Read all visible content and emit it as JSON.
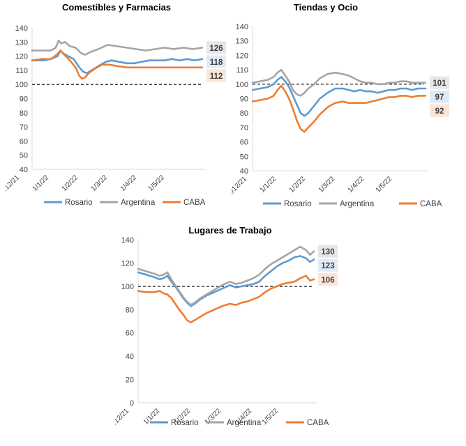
{
  "chart_data": [
    {
      "type": "line",
      "title": "Comestibles y Farmacias",
      "xlabel": "",
      "ylabel": "",
      "ylim": [
        40,
        140
      ],
      "yticks": [
        "40",
        "50",
        "60",
        "70",
        "80",
        "90",
        "100",
        "110",
        "120",
        "130",
        "140"
      ],
      "x_ticks": [
        "1/12/21",
        "1/1/22",
        "1/2/22",
        "1/3/22",
        "1/4/22",
        "1/5/22"
      ],
      "reference_line": 100,
      "legend_position": "bottom",
      "series": [
        {
          "name": "Rosario",
          "color": "#5B9BD5",
          "end_label": "118",
          "x": [
            0,
            12,
            20,
            27,
            30,
            33,
            38,
            44,
            50,
            54,
            58,
            63,
            70,
            78,
            84,
            92,
            100,
            108,
            116,
            124,
            132,
            140,
            148,
            156,
            164,
            172,
            180
          ],
          "values": [
            117,
            117,
            118,
            120,
            124,
            122,
            120,
            118,
            112,
            109,
            108,
            110,
            113,
            116,
            117,
            116,
            115,
            115,
            116,
            117,
            117,
            117,
            118,
            117,
            118,
            117,
            118
          ]
        },
        {
          "name": "Argentina",
          "color": "#A5A5A5",
          "end_label": "126",
          "x": [
            0,
            10,
            20,
            25,
            28,
            31,
            35,
            40,
            46,
            52,
            56,
            62,
            70,
            80,
            90,
            100,
            110,
            120,
            130,
            140,
            150,
            160,
            170,
            180
          ],
          "values": [
            124,
            124,
            124,
            126,
            131,
            129,
            130,
            127,
            126,
            122,
            121,
            123,
            125,
            128,
            127,
            126,
            125,
            124,
            125,
            126,
            125,
            126,
            125,
            126
          ]
        },
        {
          "name": "CABA",
          "color": "#ED7D31",
          "end_label": "112",
          "x": [
            0,
            10,
            20,
            26,
            30,
            34,
            40,
            46,
            50,
            53,
            56,
            60,
            66,
            74,
            82,
            90,
            100,
            110,
            120,
            130,
            140,
            150,
            160,
            170,
            180
          ],
          "values": [
            117,
            118,
            118,
            121,
            124,
            121,
            117,
            112,
            106,
            104,
            105,
            108,
            111,
            114,
            114,
            113,
            112,
            112,
            112,
            112,
            112,
            112,
            112,
            112,
            112
          ]
        }
      ]
    },
    {
      "type": "line",
      "title": "Tiendas y Ocio",
      "xlabel": "",
      "ylabel": "",
      "ylim": [
        40,
        140
      ],
      "yticks": [
        "40",
        "50",
        "60",
        "70",
        "80",
        "90",
        "100",
        "110",
        "120",
        "130",
        "140"
      ],
      "x_ticks": [
        "1/12/21",
        "1/1/22",
        "1/2/22",
        "1/3/22",
        "1/4/22",
        "1/5/22"
      ],
      "reference_line": 100,
      "legend_position": "bottom",
      "series": [
        {
          "name": "Rosario",
          "color": "#5B9BD5",
          "end_label": "97",
          "x": [
            0,
            8,
            16,
            22,
            26,
            30,
            34,
            38,
            42,
            46,
            50,
            54,
            58,
            64,
            70,
            78,
            86,
            94,
            100,
            106,
            112,
            118,
            124,
            130,
            136,
            142,
            148,
            154,
            160,
            166,
            172,
            180
          ],
          "values": [
            96,
            97,
            98,
            100,
            103,
            105,
            102,
            98,
            92,
            86,
            80,
            78,
            80,
            85,
            90,
            94,
            97,
            97,
            96,
            95,
            96,
            95,
            95,
            94,
            95,
            96,
            96,
            97,
            97,
            96,
            97,
            97
          ]
        },
        {
          "name": "Argentina",
          "color": "#A5A5A5",
          "end_label": "101",
          "x": [
            0,
            8,
            16,
            22,
            26,
            30,
            34,
            38,
            42,
            46,
            50,
            54,
            58,
            64,
            70,
            78,
            86,
            94,
            100,
            106,
            112,
            118,
            124,
            130,
            136,
            142,
            148,
            154,
            160,
            166,
            172,
            180
          ],
          "values": [
            101,
            102,
            103,
            105,
            108,
            110,
            106,
            102,
            96,
            93,
            92,
            94,
            97,
            100,
            104,
            107,
            108,
            107,
            106,
            104,
            102,
            101,
            101,
            100,
            100,
            101,
            101,
            102,
            102,
            101,
            101,
            101
          ]
        },
        {
          "name": "CABA",
          "color": "#ED7D31",
          "end_label": "92",
          "x": [
            0,
            8,
            16,
            22,
            26,
            30,
            34,
            38,
            42,
            46,
            50,
            54,
            58,
            64,
            70,
            78,
            86,
            94,
            100,
            106,
            112,
            118,
            124,
            130,
            136,
            142,
            148,
            154,
            160,
            166,
            172,
            180
          ],
          "values": [
            88,
            89,
            90,
            92,
            96,
            99,
            95,
            90,
            83,
            75,
            69,
            67,
            70,
            74,
            79,
            84,
            87,
            88,
            87,
            87,
            87,
            87,
            88,
            89,
            90,
            91,
            91,
            92,
            92,
            91,
            92,
            92
          ]
        }
      ]
    },
    {
      "type": "line",
      "title": "Lugares de Trabajo",
      "xlabel": "",
      "ylabel": "",
      "ylim": [
        0,
        140
      ],
      "yticks": [
        "0",
        "20",
        "40",
        "60",
        "80",
        "100",
        "120",
        "140"
      ],
      "x_ticks": [
        "1/12/21",
        "1/1/22",
        "1/2/22",
        "1/3/22",
        "1/4/22",
        "1/5/22"
      ],
      "reference_line": 100,
      "legend_position": "bottom",
      "series": [
        {
          "name": "Rosario",
          "color": "#5B9BD5",
          "end_label": "123",
          "x": [
            0,
            8,
            16,
            22,
            26,
            30,
            34,
            38,
            42,
            46,
            50,
            54,
            58,
            64,
            70,
            78,
            86,
            94,
            100,
            106,
            112,
            118,
            124,
            130,
            136,
            142,
            148,
            154,
            160,
            166,
            172,
            176,
            180
          ],
          "values": [
            112,
            110,
            108,
            106,
            107,
            109,
            104,
            100,
            95,
            90,
            86,
            83,
            85,
            89,
            92,
            95,
            98,
            101,
            99,
            100,
            101,
            102,
            104,
            109,
            113,
            117,
            120,
            122,
            125,
            126,
            124,
            121,
            123
          ]
        },
        {
          "name": "Argentina",
          "color": "#A5A5A5",
          "end_label": "130",
          "x": [
            0,
            8,
            16,
            22,
            26,
            30,
            34,
            38,
            42,
            46,
            50,
            54,
            58,
            64,
            70,
            78,
            86,
            94,
            100,
            106,
            112,
            118,
            124,
            130,
            136,
            142,
            148,
            154,
            160,
            166,
            172,
            176,
            180
          ],
          "values": [
            115,
            113,
            111,
            109,
            110,
            112,
            106,
            101,
            96,
            91,
            87,
            84,
            86,
            90,
            93,
            97,
            101,
            104,
            102,
            103,
            105,
            107,
            110,
            115,
            119,
            122,
            125,
            128,
            131,
            134,
            131,
            127,
            130
          ]
        },
        {
          "name": "CABA",
          "color": "#ED7D31",
          "end_label": "106",
          "x": [
            0,
            8,
            16,
            22,
            26,
            30,
            34,
            38,
            42,
            46,
            50,
            54,
            58,
            64,
            70,
            78,
            86,
            94,
            100,
            106,
            112,
            118,
            124,
            130,
            136,
            142,
            148,
            154,
            160,
            166,
            172,
            176,
            180
          ],
          "values": [
            96,
            95,
            95,
            96,
            94,
            93,
            90,
            85,
            80,
            76,
            71,
            69,
            71,
            74,
            77,
            80,
            83,
            85,
            84,
            86,
            87,
            89,
            91,
            95,
            98,
            100,
            102,
            103,
            104,
            107,
            109,
            105,
            106
          ]
        }
      ]
    }
  ]
}
